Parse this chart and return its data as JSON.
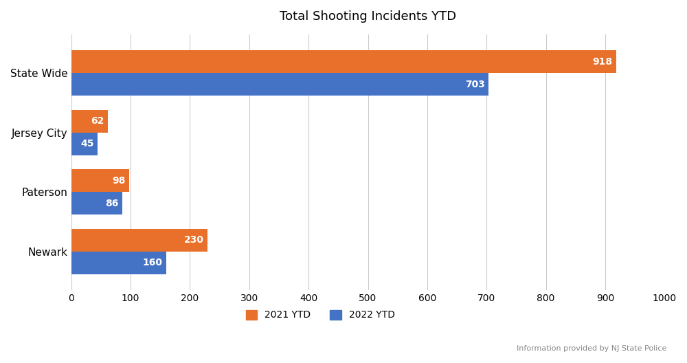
{
  "title": "Total Shooting Incidents YTD",
  "categories": [
    "Newark",
    "Paterson",
    "Jersey City",
    "State Wide"
  ],
  "values_2021": [
    230,
    98,
    62,
    918
  ],
  "values_2022": [
    160,
    86,
    45,
    703
  ],
  "color_2021": "#E8702A",
  "color_2022": "#4472C4",
  "xlim": [
    0,
    1000
  ],
  "xticks": [
    0,
    100,
    200,
    300,
    400,
    500,
    600,
    700,
    800,
    900,
    1000
  ],
  "legend_label_2021": "2021 YTD",
  "legend_label_2022": "2022 YTD",
  "footnote": "Information provided by NJ State Police",
  "bar_height": 0.38,
  "label_color": "white",
  "label_fontsize": 10,
  "title_fontsize": 13,
  "tick_fontsize": 10,
  "ytick_fontsize": 11
}
